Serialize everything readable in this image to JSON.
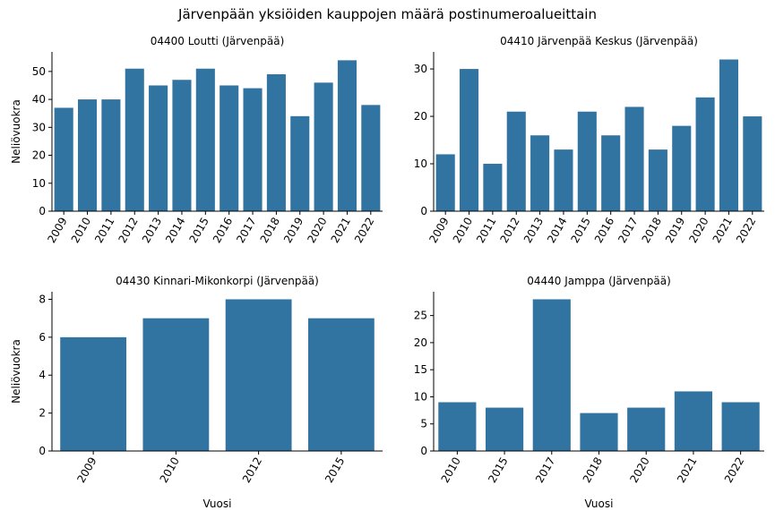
{
  "figure": {
    "title": "Järvenpään yksiöiden kauppojen määrä postinumeroalueittain",
    "bar_color": "#3274a1"
  },
  "chart_data": [
    {
      "type": "bar",
      "title": "04400  Loutti (Järvenpää)",
      "xlabel": "",
      "ylabel": "Neliövuokra",
      "categories": [
        "2009",
        "2010",
        "2011",
        "2012",
        "2013",
        "2014",
        "2015",
        "2016",
        "2017",
        "2018",
        "2019",
        "2020",
        "2021",
        "2022"
      ],
      "values": [
        37,
        40,
        40,
        51,
        45,
        47,
        51,
        45,
        44,
        49,
        34,
        46,
        54,
        38
      ],
      "ylim": [
        0,
        57
      ],
      "yticks": [
        0,
        10,
        20,
        30,
        40,
        50
      ]
    },
    {
      "type": "bar",
      "title": "04410  Järvenpää Keskus (Järvenpää)",
      "xlabel": "",
      "ylabel": "",
      "categories": [
        "2009",
        "2010",
        "2011",
        "2012",
        "2013",
        "2014",
        "2015",
        "2016",
        "2017",
        "2018",
        "2019",
        "2020",
        "2021",
        "2022"
      ],
      "values": [
        12,
        30,
        10,
        21,
        16,
        13,
        21,
        16,
        22,
        13,
        18,
        24,
        32,
        20
      ],
      "ylim": [
        0,
        33.6
      ],
      "yticks": [
        0,
        10,
        20,
        30
      ]
    },
    {
      "type": "bar",
      "title": "04430  Kinnari-Mikonkorpi (Järvenpää)",
      "xlabel": "Vuosi",
      "ylabel": "Neliövuokra",
      "categories": [
        "2009",
        "2010",
        "2012",
        "2015"
      ],
      "values": [
        6,
        7,
        8,
        7
      ],
      "ylim": [
        0,
        8.4
      ],
      "yticks": [
        0,
        2,
        4,
        6,
        8
      ]
    },
    {
      "type": "bar",
      "title": "04440  Jamppa (Järvenpää)",
      "xlabel": "Vuosi",
      "ylabel": "",
      "categories": [
        "2010",
        "2015",
        "2017",
        "2018",
        "2020",
        "2021",
        "2022"
      ],
      "values": [
        9,
        8,
        28,
        7,
        8,
        11,
        9
      ],
      "ylim": [
        0,
        29.4
      ],
      "yticks": [
        0,
        5,
        10,
        15,
        20,
        25
      ]
    }
  ]
}
